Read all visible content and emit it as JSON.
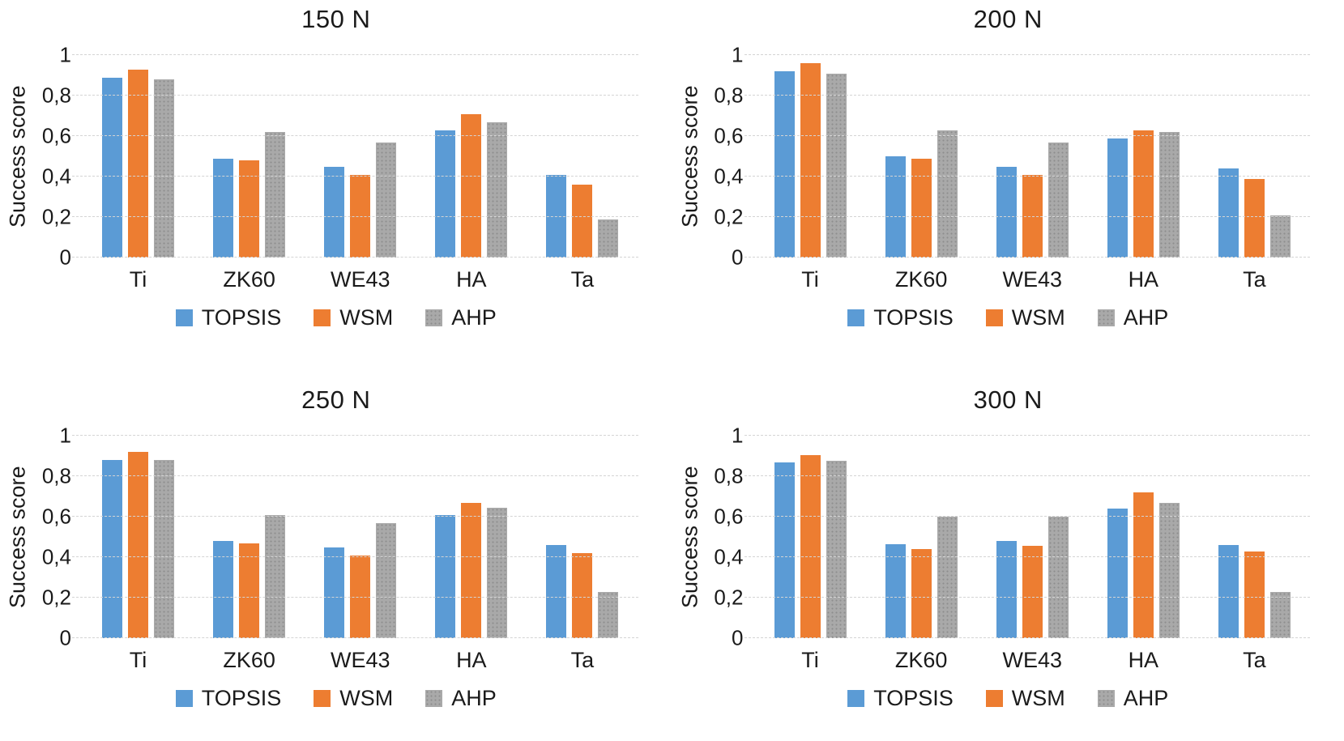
{
  "figure": {
    "description_visible_text_only": "Four grouped bar charts comparing success scores of materials under different loads",
    "decimal_separator": ","
  },
  "colors": {
    "topsis_blue": "#5B9BD5",
    "wsm_orange": "#ED7D31",
    "ahp_gray": "#A9A9A9",
    "gridline": "#D4D4D4",
    "text": "#1A1A1A"
  },
  "legend": {
    "entries": [
      "TOPSIS",
      "WSM",
      "AHP"
    ],
    "position": "bottom"
  },
  "chart_data": [
    {
      "type": "bar",
      "title": "150 N",
      "xlabel": "",
      "ylabel": "Success score",
      "categories": [
        "Ti",
        "ZK60",
        "WE43",
        "HA",
        "Ta"
      ],
      "series": [
        {
          "name": "TOPSIS",
          "color": "#5B9BD5",
          "pattern": "solid",
          "values": [
            0.89,
            0.49,
            0.45,
            0.63,
            0.41
          ]
        },
        {
          "name": "WSM",
          "color": "#ED7D31",
          "pattern": "solid",
          "values": [
            0.93,
            0.48,
            0.41,
            0.71,
            0.36
          ]
        },
        {
          "name": "AHP",
          "color": "#A9A9A9",
          "pattern": "dots",
          "values": [
            0.88,
            0.62,
            0.57,
            0.67,
            0.19
          ]
        }
      ],
      "y_ticks": [
        {
          "value": 1,
          "label": "1"
        },
        {
          "value": 0.8,
          "label": "0,8"
        },
        {
          "value": 0.6,
          "label": "0,6"
        },
        {
          "value": 0.4,
          "label": "0,4"
        },
        {
          "value": 0.2,
          "label": "0,2"
        },
        {
          "value": 0,
          "label": "0"
        }
      ],
      "ylim": [
        0,
        1
      ],
      "grid": true,
      "legend_position": "bottom"
    },
    {
      "type": "bar",
      "title": "200 N",
      "xlabel": "",
      "ylabel": "Success score",
      "categories": [
        "Ti",
        "ZK60",
        "WE43",
        "HA",
        "Ta"
      ],
      "series": [
        {
          "name": "TOPSIS",
          "color": "#5B9BD5",
          "pattern": "solid",
          "values": [
            0.92,
            0.5,
            0.45,
            0.59,
            0.44
          ]
        },
        {
          "name": "WSM",
          "color": "#ED7D31",
          "pattern": "solid",
          "values": [
            0.96,
            0.49,
            0.41,
            0.63,
            0.39
          ]
        },
        {
          "name": "AHP",
          "color": "#A9A9A9",
          "pattern": "dots",
          "values": [
            0.91,
            0.63,
            0.57,
            0.62,
            0.21
          ]
        }
      ],
      "y_ticks": [
        {
          "value": 1,
          "label": "1"
        },
        {
          "value": 0.8,
          "label": "0,8"
        },
        {
          "value": 0.6,
          "label": "0,6"
        },
        {
          "value": 0.4,
          "label": "0,4"
        },
        {
          "value": 0.2,
          "label": "0,2"
        },
        {
          "value": 0,
          "label": "0"
        }
      ],
      "ylim": [
        0,
        1
      ],
      "grid": true,
      "legend_position": "bottom"
    },
    {
      "type": "bar",
      "title": "250 N",
      "xlabel": "",
      "ylabel": "Success score",
      "categories": [
        "Ti",
        "ZK60",
        "WE43",
        "HA",
        "Ta"
      ],
      "series": [
        {
          "name": "TOPSIS",
          "color": "#5B9BD5",
          "pattern": "solid",
          "values": [
            0.88,
            0.48,
            0.45,
            0.61,
            0.46
          ]
        },
        {
          "name": "WSM",
          "color": "#ED7D31",
          "pattern": "solid",
          "values": [
            0.92,
            0.47,
            0.41,
            0.67,
            0.42
          ]
        },
        {
          "name": "AHP",
          "color": "#A9A9A9",
          "pattern": "dots",
          "values": [
            0.88,
            0.61,
            0.57,
            0.645,
            0.23
          ]
        }
      ],
      "y_ticks": [
        {
          "value": 1,
          "label": "1"
        },
        {
          "value": 0.8,
          "label": "0,8"
        },
        {
          "value": 0.6,
          "label": "0,6"
        },
        {
          "value": 0.4,
          "label": "0,4"
        },
        {
          "value": 0.2,
          "label": "0,2"
        },
        {
          "value": 0,
          "label": "0"
        }
      ],
      "ylim": [
        0,
        1
      ],
      "grid": true,
      "legend_position": "bottom"
    },
    {
      "type": "bar",
      "title": "300 N",
      "xlabel": "",
      "ylabel": "Success score",
      "categories": [
        "Ti",
        "ZK60",
        "WE43",
        "HA",
        "Ta"
      ],
      "series": [
        {
          "name": "TOPSIS",
          "color": "#5B9BD5",
          "pattern": "solid",
          "values": [
            0.87,
            0.465,
            0.48,
            0.64,
            0.46
          ]
        },
        {
          "name": "WSM",
          "color": "#ED7D31",
          "pattern": "solid",
          "values": [
            0.905,
            0.44,
            0.455,
            0.72,
            0.43
          ]
        },
        {
          "name": "AHP",
          "color": "#A9A9A9",
          "pattern": "dots",
          "values": [
            0.875,
            0.6,
            0.6,
            0.67,
            0.23
          ]
        }
      ],
      "y_ticks": [
        {
          "value": 1,
          "label": "1"
        },
        {
          "value": 0.8,
          "label": "0,8"
        },
        {
          "value": 0.6,
          "label": "0,6"
        },
        {
          "value": 0.4,
          "label": "0,4"
        },
        {
          "value": 0.2,
          "label": "0,2"
        },
        {
          "value": 0,
          "label": "0"
        }
      ],
      "ylim": [
        0,
        1
      ],
      "grid": true,
      "legend_position": "bottom"
    }
  ]
}
